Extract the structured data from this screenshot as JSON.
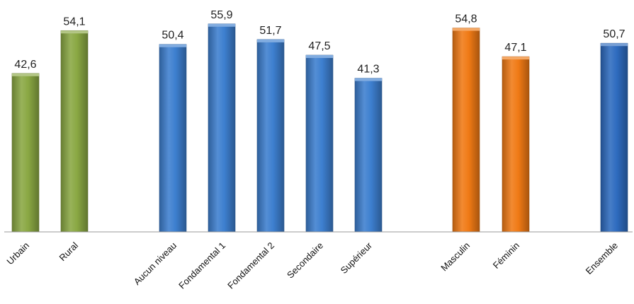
{
  "chart_data": {
    "type": "bar",
    "categories": [
      "Urbain",
      "Rural",
      "Aucun niveau",
      "Fondamental 1",
      "Fondamental 2",
      "Secondaire",
      "Supérieur",
      "Masculin",
      "Féminin",
      "Ensemble"
    ],
    "values": [
      42.6,
      54.1,
      50.4,
      55.9,
      51.7,
      47.5,
      41.3,
      54.8,
      47.1,
      50.7
    ],
    "value_labels": [
      "42,6",
      "54,1",
      "50,4",
      "55,9",
      "51,7",
      "47,5",
      "41,3",
      "54,8",
      "47,1",
      "50,7"
    ],
    "groups": [
      "milieu",
      "milieu",
      "niveau",
      "niveau",
      "niveau",
      "niveau",
      "niveau",
      "sexe",
      "sexe",
      "ensemble"
    ],
    "colors": {
      "milieu": "#8aa843",
      "niveau": "#3d7fcf",
      "sexe": "#f07a15",
      "ensemble": "#2e6bbf"
    },
    "title": "",
    "xlabel": "",
    "ylabel": "",
    "ylim": [
      0,
      57
    ],
    "grid": false,
    "legend": "none"
  }
}
